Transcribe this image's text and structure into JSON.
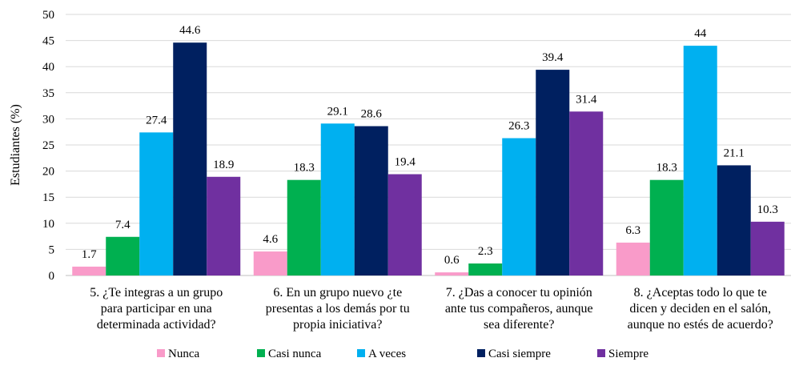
{
  "chart_data": {
    "type": "bar",
    "title": "",
    "xlabel": "",
    "ylabel": "Estudiantes (%)",
    "ylim": [
      0,
      50
    ],
    "yticks": [
      0,
      5,
      10,
      15,
      20,
      25,
      30,
      35,
      40,
      45,
      50
    ],
    "grid": true,
    "legend_position": "bottom",
    "categories": [
      [
        "5. ¿Te integras a un grupo",
        "para participar en una",
        "determinada actividad?"
      ],
      [
        "6. En un grupo nuevo ¿te",
        "presentas a los demás por tu",
        "propia iniciativa?"
      ],
      [
        "7. ¿Das a conocer tu opinión",
        "ante tus compañeros, aunque",
        "sea diferente?"
      ],
      [
        "8. ¿Aceptas todo lo que te",
        "dicen y deciden en el salón,",
        "aunque no estés de acuerdo?"
      ]
    ],
    "series": [
      {
        "name": "Nunca",
        "color": "#F99BC9",
        "values": [
          1.7,
          4.6,
          0.6,
          6.3
        ]
      },
      {
        "name": "Casi nunca",
        "color": "#00B050",
        "values": [
          7.4,
          18.3,
          2.3,
          18.3
        ]
      },
      {
        "name": "A veces",
        "color": "#00B0F0",
        "values": [
          27.4,
          29.1,
          26.3,
          44
        ]
      },
      {
        "name": "Casi siempre",
        "color": "#002060",
        "values": [
          44.6,
          28.6,
          39.4,
          21.1
        ]
      },
      {
        "name": "Siempre",
        "color": "#7030A0",
        "values": [
          18.9,
          19.4,
          31.4,
          10.3
        ]
      }
    ]
  }
}
